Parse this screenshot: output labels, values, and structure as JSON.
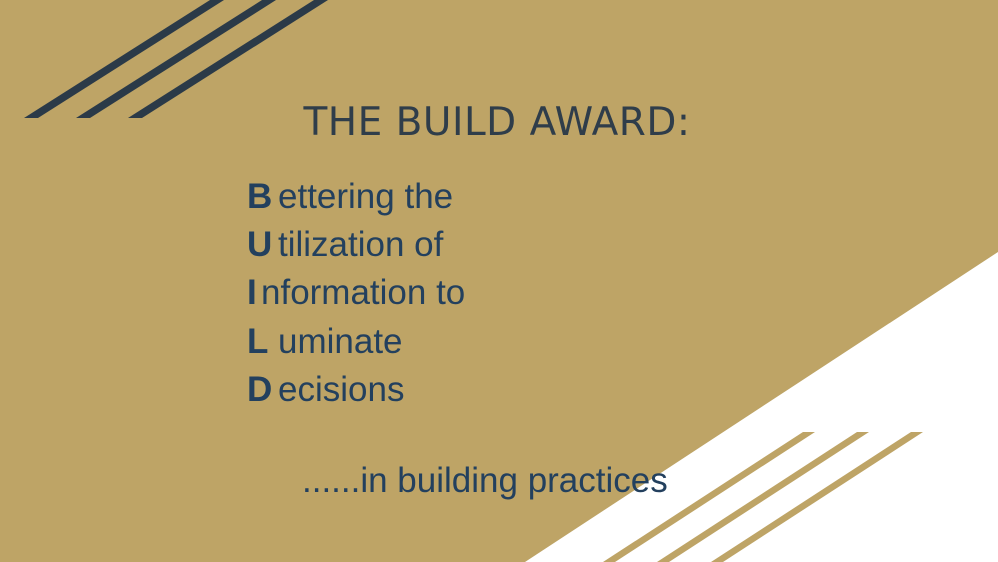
{
  "slide": {
    "title": "THE BUILD AWARD:",
    "acrostic": [
      {
        "initial": "B",
        "rest": "ettering the"
      },
      {
        "initial": "U",
        "rest": "tilization of"
      },
      {
        "initial": "I",
        "rest": "nformation to"
      },
      {
        "initial": "L",
        "rest": "uminate"
      },
      {
        "initial": "D",
        "rest": "ecisions"
      }
    ],
    "tagline": "......in building practices"
  },
  "colors": {
    "gold": "#bea466",
    "navy": "#23405e",
    "title": "#2f3d4a",
    "stripe_dark": "#2b3a48",
    "stripe_gold": "#bea466",
    "white": "#ffffff"
  }
}
